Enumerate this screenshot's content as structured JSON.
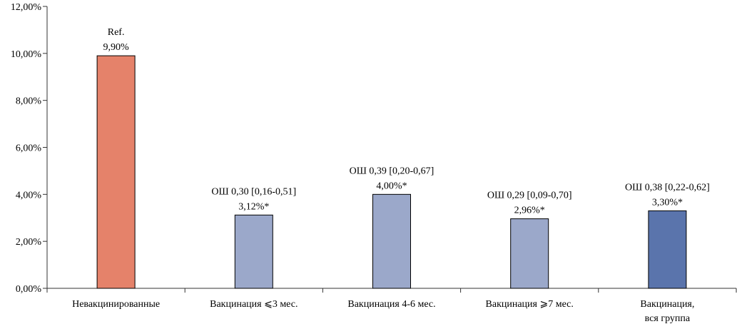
{
  "chart_data": {
    "type": "bar",
    "title": "",
    "xlabel": "",
    "ylabel": "",
    "ylim": [
      0,
      12
    ],
    "y_ticks": [
      0,
      2,
      4,
      6,
      8,
      10,
      12
    ],
    "y_tick_labels": [
      "0,00%",
      "2,00%",
      "4,00%",
      "6,00%",
      "8,00%",
      "10,00%",
      "12,00%"
    ],
    "grid": false,
    "legend": "none",
    "categories": [
      [
        "Невакцинированные"
      ],
      [
        "Вакцинация ⩽3 мес."
      ],
      [
        "Вакцинация 4-6 мес."
      ],
      [
        "Вакцинация ⩾7 мес."
      ],
      [
        "Вакцинация,",
        "вся группа"
      ]
    ],
    "values": [
      9.9,
      3.12,
      4.0,
      2.96,
      3.3
    ],
    "bar_labels": [
      [
        "Ref.",
        "9,90%"
      ],
      [
        "ОШ 0,30 [0,16-0,51]",
        "3,12%*"
      ],
      [
        "ОШ 0,39 [0,20-0,67]",
        "4,00%*"
      ],
      [
        "ОШ 0,29 [0,09-0,70]",
        "2,96%*"
      ],
      [
        "ОШ 0,38 [0,22-0,62]",
        "3,30%*"
      ]
    ],
    "colors": [
      "#E5826A",
      "#9BA8CA",
      "#9BA8CA",
      "#9BA8CA",
      "#5A74AC"
    ]
  }
}
